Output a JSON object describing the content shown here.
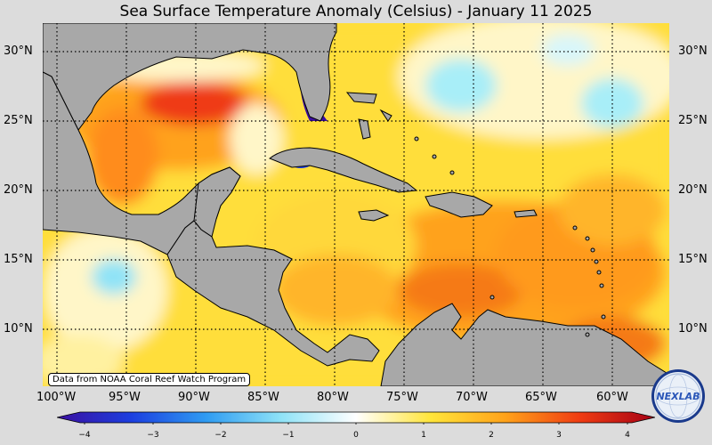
{
  "title": "Sea Surface Temperature Anomaly (Celsius) - January 11 2025",
  "credit": "Data from NOAA Coral Reef Watch Program",
  "lat_labels": [
    "30°N",
    "25°N",
    "20°N",
    "15°N",
    "10°N"
  ],
  "lon_labels": [
    "100°W",
    "95°W",
    "90°W",
    "85°W",
    "80°W",
    "75°W",
    "70°W",
    "65°W",
    "60°W"
  ],
  "colorbar": {
    "ticks": [
      "−4",
      "−3",
      "−2",
      "−1",
      "0",
      "1",
      "2",
      "3",
      "4"
    ],
    "min": -4,
    "max": 4,
    "colors": [
      "#3b0fa0",
      "#1c3fe0",
      "#2f9cf2",
      "#8fe3f7",
      "#ffffff",
      "#ffe53a",
      "#ffa21a",
      "#ef3b12",
      "#a50015"
    ]
  },
  "logo_text": "NEXLAB",
  "colors": {
    "land": "#a8a8a8",
    "background": "#dcdcdc",
    "ocean_base": "#ffde3a"
  }
}
